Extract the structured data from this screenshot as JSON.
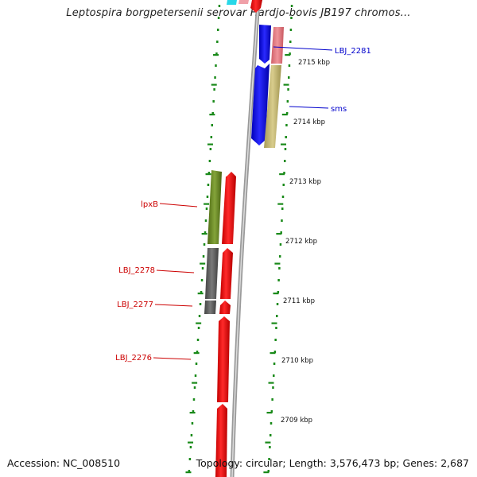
{
  "map": {
    "title": "Leptospira borgpetersenii serovar Hardjo-bovis JB197 chromos...",
    "accession": "Accession: NC_008510",
    "topology": "Topology: circular; Length: 3,576,473 bp; Genes: 2,687"
  },
  "scale": {
    "unit": "kbp",
    "ticks": [
      {
        "label": "2715 kbp"
      },
      {
        "label": "2714 kbp"
      },
      {
        "label": "2713 kbp"
      },
      {
        "label": "2712 kbp"
      },
      {
        "label": "2711 kbp"
      },
      {
        "label": "2710 kbp"
      },
      {
        "label": "2709 kbp"
      }
    ]
  },
  "genes": [
    {
      "label": "LBJ_2281",
      "strand": "forward",
      "color": "#0000cc"
    },
    {
      "label": "sms",
      "strand": "forward",
      "color": "#0000cc"
    },
    {
      "label": "lpxB",
      "strand": "reverse",
      "color": "#cc0000"
    },
    {
      "label": "LBJ_2278",
      "strand": "reverse",
      "color": "#cc0000"
    },
    {
      "label": "LBJ_2277",
      "strand": "reverse",
      "color": "#cc0000"
    },
    {
      "label": "LBJ_2276",
      "strand": "reverse",
      "color": "#cc0000"
    }
  ],
  "colors": {
    "forward_gene": "#1010ee",
    "reverse_gene": "#ee1111",
    "cog_pink": "#e87c84",
    "cog_khaki": "#c8bc78",
    "cog_green": "#6b8a24",
    "cog_gray": "#666666",
    "cog_cyan": "#28d8e8",
    "backbone": "#8c8c8c",
    "dotted_ring": "#1a8a1a"
  }
}
